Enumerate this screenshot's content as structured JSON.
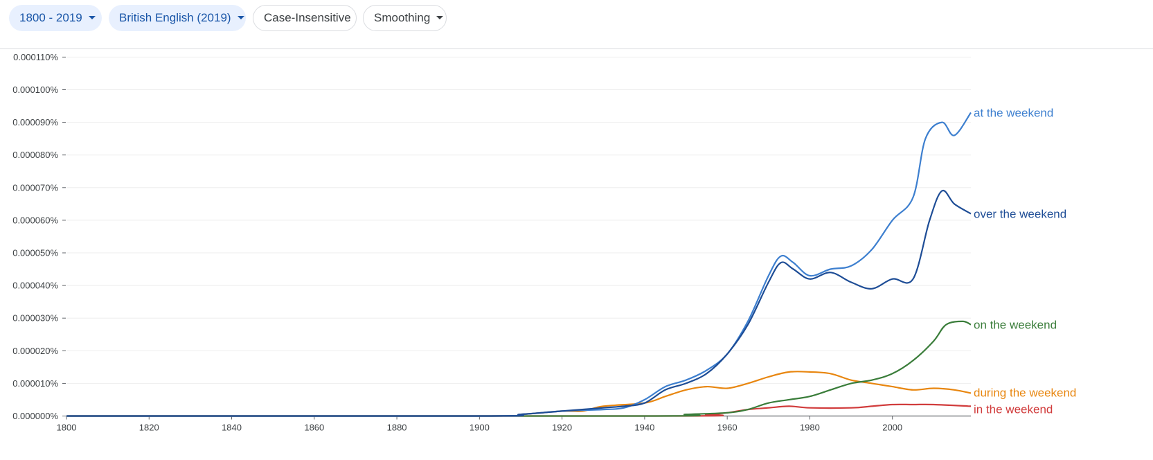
{
  "toolbar": {
    "year_range": "1800 - 2019",
    "corpus": "British English (2019)",
    "case": "Case-Insensitive",
    "smoothing": "Smoothing"
  },
  "chart_data": {
    "type": "line",
    "xlim": [
      1800,
      2019
    ],
    "ylim": [
      0,
      0.000115
    ],
    "x_ticks": [
      1800,
      1820,
      1840,
      1860,
      1880,
      1900,
      1920,
      1940,
      1960,
      1980,
      2000
    ],
    "x_tick_labels": [
      "1800",
      "1820",
      "1840",
      "1860",
      "1880",
      "1900",
      "1920",
      "1940",
      "1960",
      "1980",
      "2000"
    ],
    "y_ticks": [
      0,
      1e-05,
      2e-05,
      3e-05,
      4e-05,
      5e-05,
      6e-05,
      7e-05,
      8e-05,
      9e-05,
      0.0001,
      0.00011
    ],
    "y_tick_labels": [
      "0.000000%",
      "0.000010%",
      "0.000020%",
      "0.000030%",
      "0.000040%",
      "0.000050%",
      "0.000060%",
      "0.000070%",
      "0.000080%",
      "0.000090%",
      "0.000100%",
      "0.000110%"
    ],
    "grid": true,
    "legend": "line-end labels",
    "series": [
      {
        "name": "at the weekend",
        "color": "#3d7fcf",
        "points": [
          [
            1800,
            0
          ],
          [
            1900,
            0
          ],
          [
            1910,
            5e-07
          ],
          [
            1920,
            1.5e-06
          ],
          [
            1930,
            2e-06
          ],
          [
            1935,
            2.5e-06
          ],
          [
            1940,
            5e-06
          ],
          [
            1945,
            9e-06
          ],
          [
            1950,
            1.1e-05
          ],
          [
            1955,
            1.4e-05
          ],
          [
            1960,
            1.9e-05
          ],
          [
            1965,
            2.9e-05
          ],
          [
            1970,
            4.3e-05
          ],
          [
            1973,
            4.9e-05
          ],
          [
            1976,
            4.7e-05
          ],
          [
            1980,
            4.3e-05
          ],
          [
            1985,
            4.5e-05
          ],
          [
            1990,
            4.6e-05
          ],
          [
            1995,
            5.1e-05
          ],
          [
            2000,
            6e-05
          ],
          [
            2005,
            6.7e-05
          ],
          [
            2008,
            8.5e-05
          ],
          [
            2012,
            9e-05
          ],
          [
            2015,
            8.6e-05
          ],
          [
            2019,
            9.3e-05
          ]
        ]
      },
      {
        "name": "over the weekend",
        "color": "#1e4d96",
        "points": [
          [
            1800,
            0
          ],
          [
            1900,
            0
          ],
          [
            1910,
            5e-07
          ],
          [
            1920,
            1.5e-06
          ],
          [
            1930,
            2.5e-06
          ],
          [
            1935,
            3e-06
          ],
          [
            1940,
            4e-06
          ],
          [
            1945,
            8e-06
          ],
          [
            1950,
            1e-05
          ],
          [
            1955,
            1.3e-05
          ],
          [
            1960,
            1.9e-05
          ],
          [
            1965,
            2.8e-05
          ],
          [
            1970,
            4.1e-05
          ],
          [
            1973,
            4.7e-05
          ],
          [
            1976,
            4.5e-05
          ],
          [
            1980,
            4.2e-05
          ],
          [
            1985,
            4.4e-05
          ],
          [
            1990,
            4.1e-05
          ],
          [
            1995,
            3.9e-05
          ],
          [
            2000,
            4.2e-05
          ],
          [
            2005,
            4.2e-05
          ],
          [
            2009,
            6e-05
          ],
          [
            2012,
            6.9e-05
          ],
          [
            2015,
            6.5e-05
          ],
          [
            2019,
            6.2e-05
          ]
        ]
      },
      {
        "name": "on the weekend",
        "color": "#3a7d3a",
        "points": [
          [
            1800,
            0
          ],
          [
            1940,
            0
          ],
          [
            1950,
            5e-07
          ],
          [
            1960,
            1e-06
          ],
          [
            1965,
            2e-06
          ],
          [
            1970,
            4e-06
          ],
          [
            1975,
            5e-06
          ],
          [
            1980,
            6e-06
          ],
          [
            1985,
            8e-06
          ],
          [
            1990,
            1e-05
          ],
          [
            1995,
            1.1e-05
          ],
          [
            2000,
            1.3e-05
          ],
          [
            2005,
            1.7e-05
          ],
          [
            2010,
            2.3e-05
          ],
          [
            2013,
            2.8e-05
          ],
          [
            2017,
            2.9e-05
          ],
          [
            2019,
            2.8e-05
          ]
        ]
      },
      {
        "name": "during the weekend",
        "color": "#e8860f",
        "points": [
          [
            1800,
            0
          ],
          [
            1900,
            0
          ],
          [
            1910,
            5e-07
          ],
          [
            1920,
            1.5e-06
          ],
          [
            1925,
            1.5e-06
          ],
          [
            1930,
            3e-06
          ],
          [
            1940,
            4e-06
          ],
          [
            1945,
            6e-06
          ],
          [
            1950,
            8e-06
          ],
          [
            1955,
            9e-06
          ],
          [
            1960,
            8.5e-06
          ],
          [
            1965,
            1e-05
          ],
          [
            1970,
            1.2e-05
          ],
          [
            1975,
            1.35e-05
          ],
          [
            1980,
            1.35e-05
          ],
          [
            1985,
            1.3e-05
          ],
          [
            1990,
            1.1e-05
          ],
          [
            1995,
            1e-05
          ],
          [
            2000,
            9e-06
          ],
          [
            2005,
            8e-06
          ],
          [
            2010,
            8.5e-06
          ],
          [
            2015,
            8e-06
          ],
          [
            2019,
            7e-06
          ]
        ]
      },
      {
        "name": "in the weekend",
        "color": "#d13c3c",
        "points": [
          [
            1800,
            0
          ],
          [
            1945,
            0
          ],
          [
            1955,
            5e-07
          ],
          [
            1960,
            1e-06
          ],
          [
            1965,
            2e-06
          ],
          [
            1970,
            2.5e-06
          ],
          [
            1975,
            3e-06
          ],
          [
            1980,
            2.5e-06
          ],
          [
            1990,
            2.5e-06
          ],
          [
            1995,
            3e-06
          ],
          [
            2000,
            3.5e-06
          ],
          [
            2005,
            3.5e-06
          ],
          [
            2010,
            3.5e-06
          ],
          [
            2019,
            3e-06
          ]
        ]
      }
    ]
  }
}
